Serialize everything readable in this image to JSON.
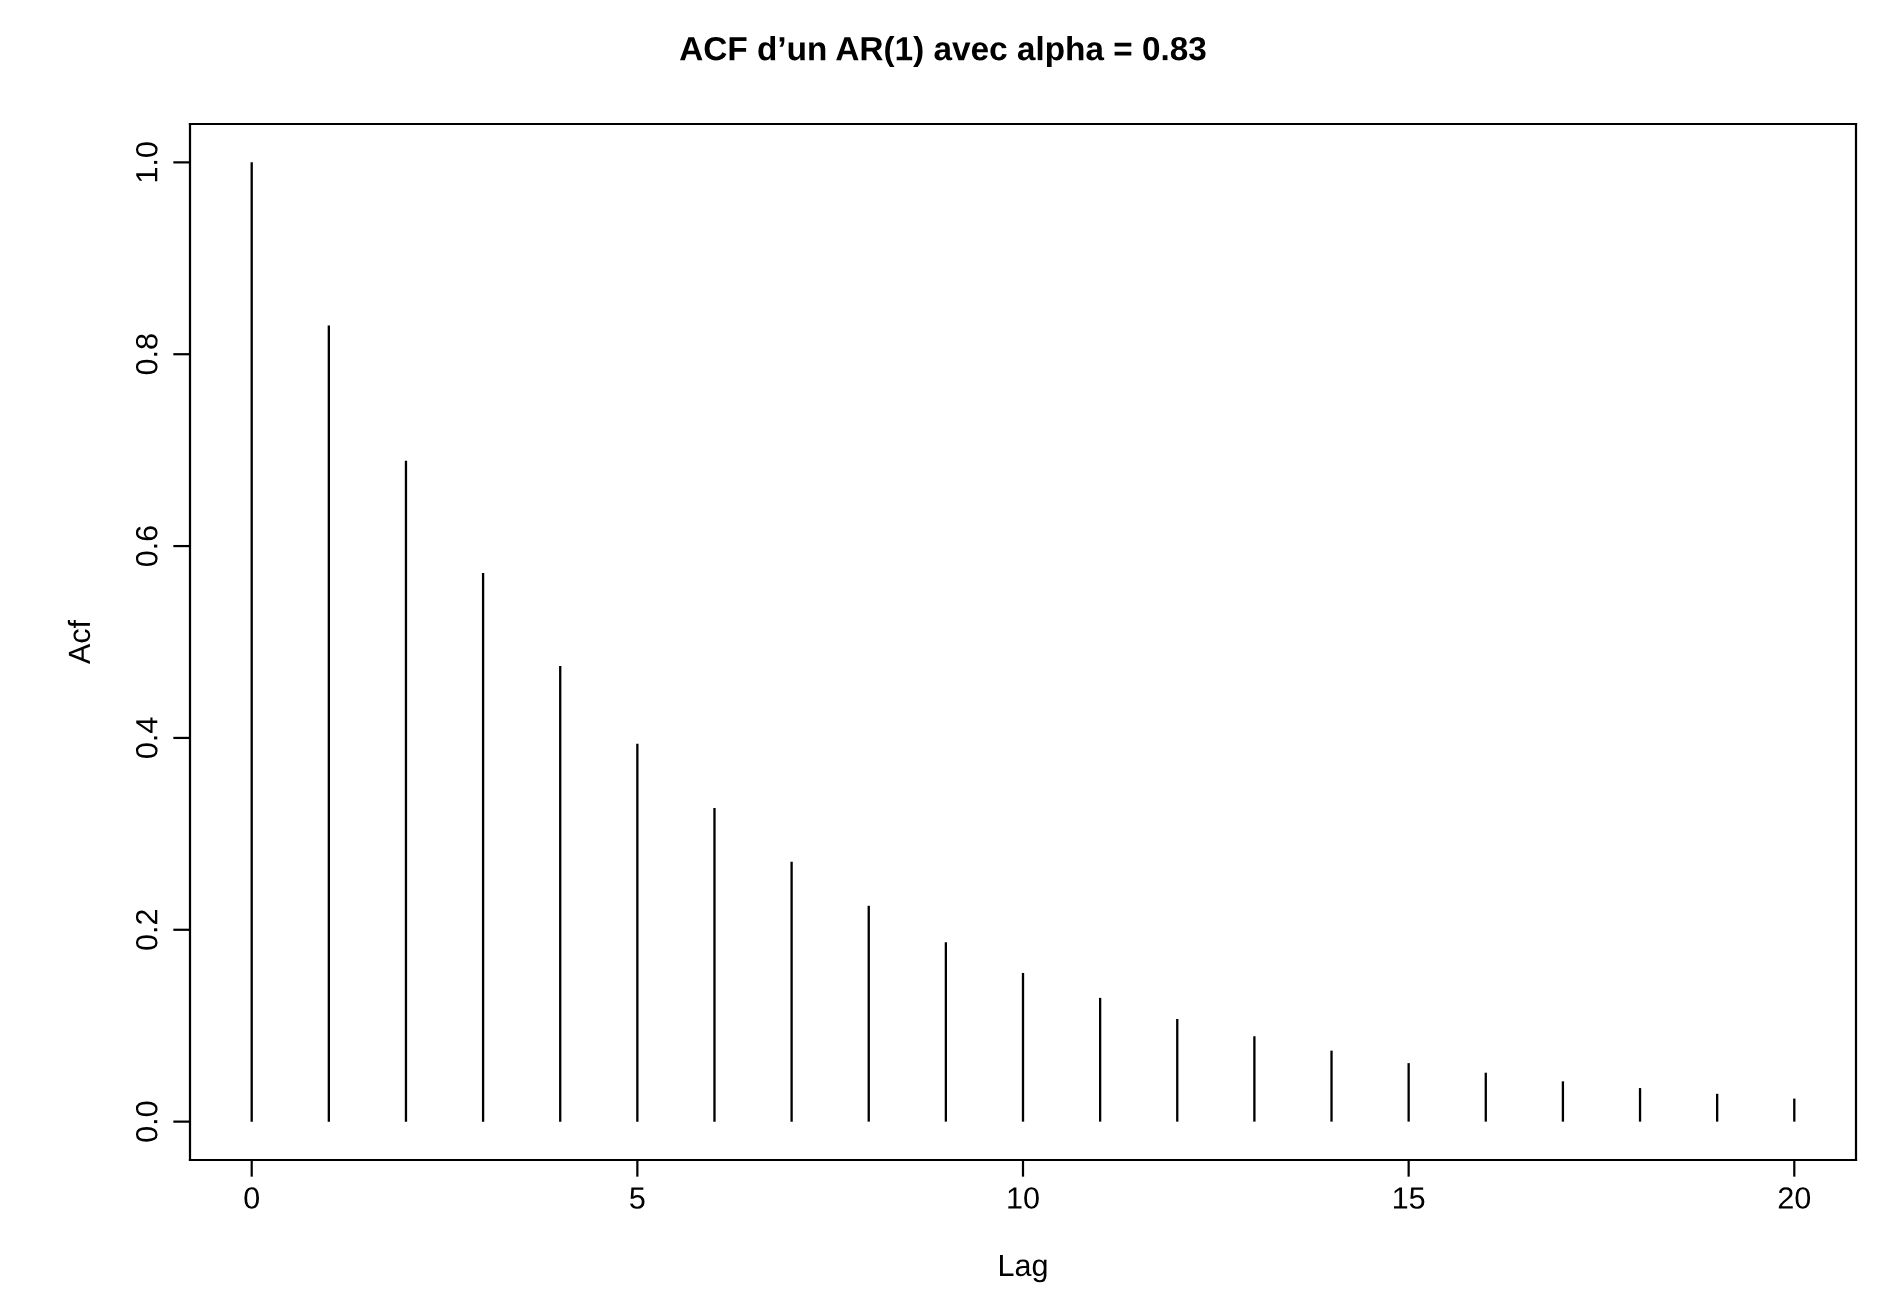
{
  "chart_data": {
    "type": "bar",
    "title": "ACF d’un AR(1) avec alpha = 0.83",
    "xlabel": "Lag",
    "ylabel": "Acf",
    "x": [
      0,
      1,
      2,
      3,
      4,
      5,
      6,
      7,
      8,
      9,
      10,
      11,
      12,
      13,
      14,
      15,
      16,
      17,
      18,
      19,
      20
    ],
    "values": [
      1.0,
      0.83,
      0.689,
      0.572,
      0.475,
      0.394,
      0.327,
      0.271,
      0.225,
      0.187,
      0.155,
      0.129,
      0.107,
      0.089,
      0.074,
      0.061,
      0.051,
      0.042,
      0.035,
      0.029,
      0.024
    ],
    "color": "#000000",
    "xlim": [
      -0.8,
      20.8
    ],
    "ylim": [
      -0.04,
      1.04
    ],
    "xticks": [
      0,
      5,
      10,
      15,
      20
    ],
    "yticks": [
      {
        "value": 0,
        "label": "0.0"
      },
      {
        "value": 0.2,
        "label": "0.2"
      },
      {
        "value": 0.4,
        "label": "0.4"
      },
      {
        "value": 0.6,
        "label": "0.6"
      },
      {
        "value": 0.8,
        "label": "0.8"
      },
      {
        "value": 1.0,
        "label": "1.0"
      }
    ],
    "grid": false,
    "legend": false
  }
}
